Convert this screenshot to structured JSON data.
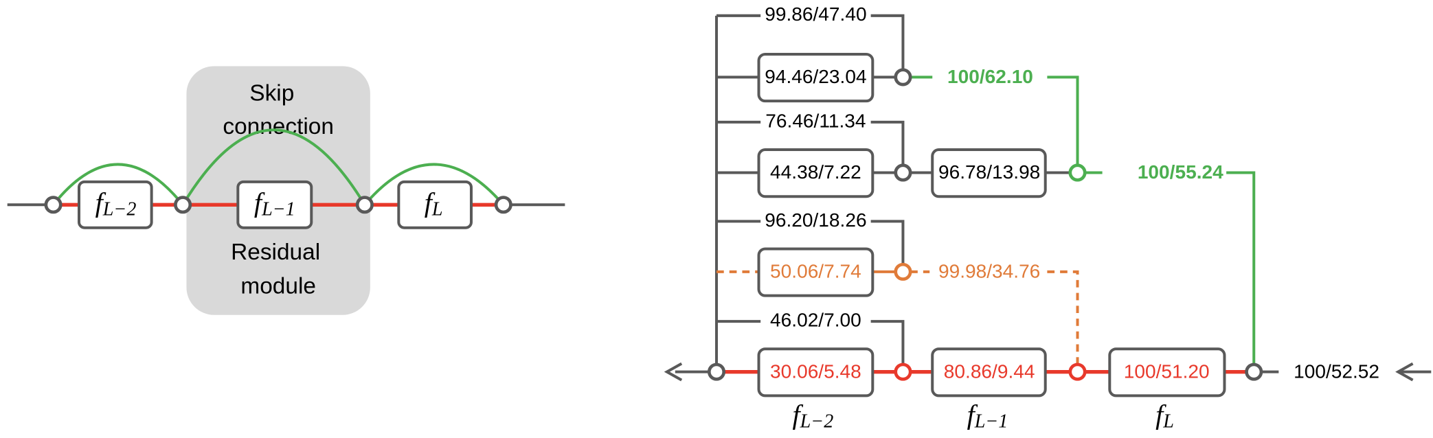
{
  "left": {
    "skip_label": [
      "Skip",
      "connection"
    ],
    "residual_label": [
      "Residual",
      "module"
    ],
    "blocks": [
      {
        "base": "f",
        "sub": "L−2"
      },
      {
        "base": "f",
        "sub": "L−1"
      },
      {
        "base": "f",
        "sub": "L"
      }
    ]
  },
  "right": {
    "rows": [
      {
        "bypass": "99.86/47.40",
        "box": "94.46/23.04",
        "out": "100/62.10"
      },
      {
        "bypass": "76.46/11.34",
        "box": "44.38/7.22",
        "box2": "96.78/13.98",
        "out": "100/55.24"
      },
      {
        "bypass": "96.20/18.26",
        "box": "50.06/7.74",
        "out": "99.98/34.76"
      },
      {
        "bypass": "46.02/7.00",
        "box": "30.06/5.48",
        "box2": "80.86/9.44",
        "box3": "100/51.20"
      }
    ],
    "input": "100/52.52",
    "blocks": [
      {
        "base": "f",
        "sub": "L−2"
      },
      {
        "base": "f",
        "sub": "L−1"
      },
      {
        "base": "f",
        "sub": "L"
      }
    ]
  }
}
